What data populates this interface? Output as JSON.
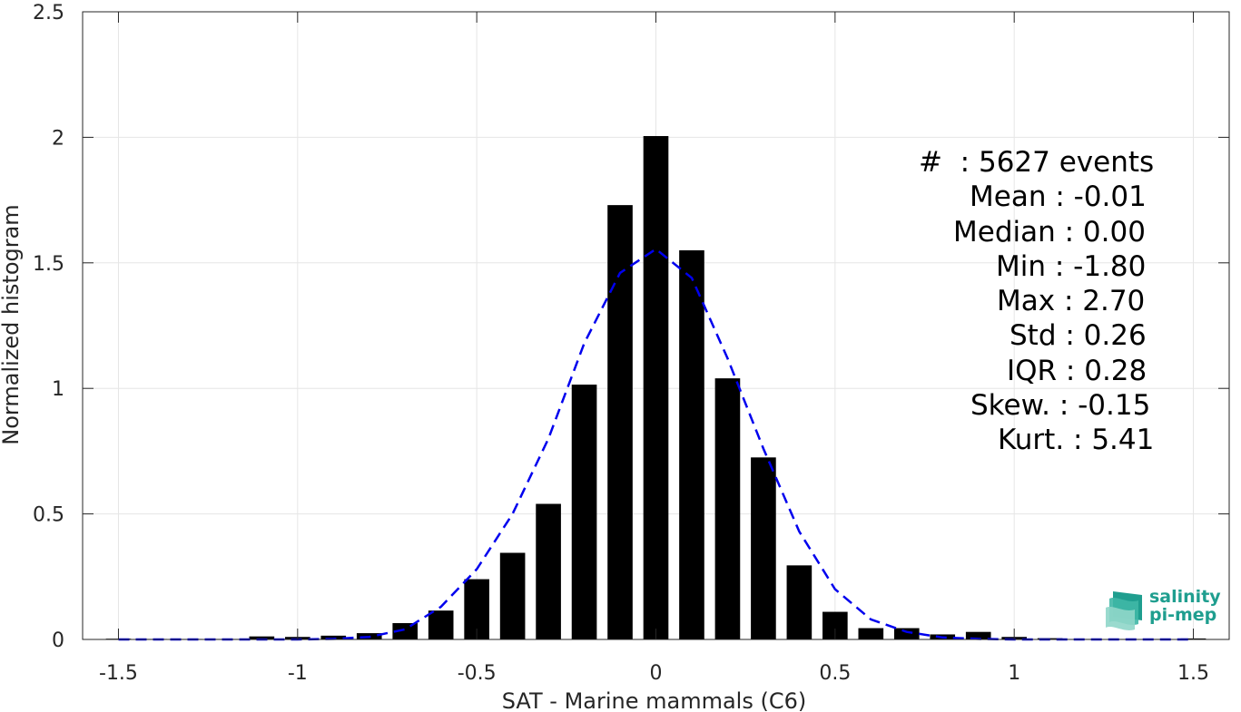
{
  "chart_data": {
    "type": "bar",
    "xlabel": "SAT - Marine mammals (C6)",
    "ylabel": "Normalized histogram",
    "xlim": [
      -1.6,
      1.6
    ],
    "ylim": [
      0,
      2.5
    ],
    "grid": true,
    "x_ticks": [
      -1.5,
      -1,
      -0.5,
      0,
      0.5,
      1,
      1.5
    ],
    "x_tick_labels": [
      "-1.5",
      "-1",
      "-0.5",
      "0",
      "0.5",
      "1",
      "1.5"
    ],
    "y_ticks": [
      0,
      0.5,
      1,
      1.5,
      2,
      2.5
    ],
    "y_tick_labels": [
      "0",
      "0.5",
      "1",
      "1.5",
      "2",
      "2.5"
    ],
    "bar_width": 0.07,
    "bars": {
      "x": [
        -1.5,
        -1.4,
        -1.3,
        -1.2,
        -1.1,
        -1.0,
        -0.9,
        -0.8,
        -0.7,
        -0.6,
        -0.5,
        -0.4,
        -0.3,
        -0.2,
        -0.1,
        0.0,
        0.1,
        0.2,
        0.3,
        0.4,
        0.5,
        0.6,
        0.7,
        0.8,
        0.9,
        1.0,
        1.1,
        1.2,
        1.3,
        1.4,
        1.5
      ],
      "values": [
        0.003,
        0.002,
        0.002,
        0.002,
        0.012,
        0.01,
        0.015,
        0.025,
        0.065,
        0.115,
        0.24,
        0.345,
        0.54,
        1.015,
        1.73,
        2.005,
        1.55,
        1.04,
        0.725,
        0.295,
        0.11,
        0.045,
        0.045,
        0.02,
        0.03,
        0.01,
        0.005,
        0.002,
        0.002,
        0.002,
        0.004
      ]
    },
    "fit_curve": {
      "style": "dashed",
      "x": [
        -1.5,
        -1.4,
        -1.3,
        -1.2,
        -1.1,
        -1.0,
        -0.9,
        -0.8,
        -0.7,
        -0.6,
        -0.5,
        -0.4,
        -0.3,
        -0.2,
        -0.1,
        0.0,
        0.1,
        0.2,
        0.3,
        0.4,
        0.5,
        0.6,
        0.7,
        0.8,
        0.9,
        1.0,
        1.1,
        1.2,
        1.3,
        1.4,
        1.5
      ],
      "y": [
        0.0,
        0.0,
        0.0,
        0.0,
        0.0,
        0.0,
        0.002,
        0.01,
        0.04,
        0.13,
        0.28,
        0.5,
        0.8,
        1.18,
        1.46,
        1.555,
        1.44,
        1.12,
        0.76,
        0.43,
        0.2,
        0.08,
        0.03,
        0.008,
        0.002,
        0.0,
        0.0,
        0.0,
        0.0,
        0.0,
        0.0
      ]
    },
    "colors": {
      "bars": "#000000",
      "fit_curve": "#0000ee",
      "grid": "#e6e6e6",
      "axes": "#262626"
    }
  },
  "stats": [
    "#  : 5627 events",
    "Mean : -0.01",
    "Median : 0.00",
    "Min : -1.80",
    "Max : 2.70",
    "Std : 0.26",
    "IQR : 0.28",
    "Skew. : -0.15",
    "Kurt. : 5.41"
  ],
  "logo": {
    "line1": "salinity",
    "line2": "pi-mep",
    "icon": "salinity-waves-icon",
    "color": "#1f9e8f"
  }
}
